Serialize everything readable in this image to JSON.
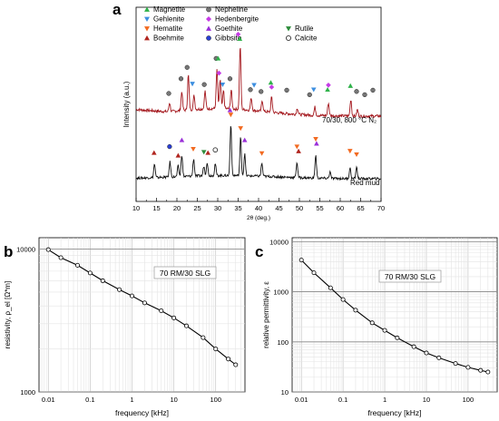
{
  "panels": {
    "a": {
      "label": "a"
    },
    "b": {
      "label": "b"
    },
    "c": {
      "label": "c"
    }
  },
  "chart_data": [
    {
      "panel": "a",
      "type": "line",
      "xlabel": "2θ (deg.)",
      "ylabel": "Intensity (a.u.)",
      "xlim": [
        10,
        70
      ],
      "xticks": [
        10,
        15,
        20,
        25,
        30,
        35,
        40,
        45,
        50,
        55,
        60,
        65,
        70
      ],
      "legend": [
        {
          "name": "Magnetite",
          "marker": "triangle-up",
          "color": "#2fb24a"
        },
        {
          "name": "Gehlenite",
          "marker": "triangle-down",
          "color": "#3d8fe0"
        },
        {
          "name": "Hematite",
          "marker": "triangle-down",
          "color": "#f26a21"
        },
        {
          "name": "Boehmite",
          "marker": "triangle-up",
          "color": "#b0241e"
        },
        {
          "name": "Nepheline",
          "marker": "circle",
          "color": "#777777"
        },
        {
          "name": "Hedenbergite",
          "marker": "diamond",
          "color": "#c63be6"
        },
        {
          "name": "Goethite",
          "marker": "triangle-up",
          "color": "#9a2fd8"
        },
        {
          "name": "Gibbsite",
          "marker": "circle",
          "color": "#2a3fd6"
        },
        {
          "name": "Rutile",
          "marker": "triangle-down",
          "color": "#2c8c3a"
        },
        {
          "name": "Calcite",
          "marker": "circle-open",
          "color": "#333333"
        }
      ],
      "series": [
        {
          "name": "70/30, 800 °C N₂",
          "color": "#a3151b",
          "peaks": [
            {
              "x": 18.2,
              "h": 0.14
            },
            {
              "x": 21.2,
              "h": 0.3
            },
            {
              "x": 22.8,
              "h": 0.55
            },
            {
              "x": 24.2,
              "h": 0.22
            },
            {
              "x": 26.9,
              "h": 0.28
            },
            {
              "x": 29.8,
              "h": 0.62
            },
            {
              "x": 30.6,
              "h": 0.46
            },
            {
              "x": 31.4,
              "h": 0.28
            },
            {
              "x": 33.3,
              "h": 0.3
            },
            {
              "x": 35.5,
              "h": 1.0
            },
            {
              "x": 38.2,
              "h": 0.2
            },
            {
              "x": 40.9,
              "h": 0.17
            },
            {
              "x": 43.2,
              "h": 0.24
            },
            {
              "x": 49.5,
              "h": 0.1
            },
            {
              "x": 53.8,
              "h": 0.13
            },
            {
              "x": 57.1,
              "h": 0.2
            },
            {
              "x": 62.6,
              "h": 0.26
            },
            {
              "x": 64.2,
              "h": 0.1
            }
          ],
          "markers": [
            {
              "x": 18.0,
              "m": "circle"
            },
            {
              "x": 21.0,
              "m": "circle"
            },
            {
              "x": 22.5,
              "m": "circle"
            },
            {
              "x": 23.8,
              "m": "triangle-down-blue"
            },
            {
              "x": 26.7,
              "m": "circle"
            },
            {
              "x": 29.6,
              "m": "circle"
            },
            {
              "x": 30.3,
              "m": "diamond"
            },
            {
              "x": 30.1,
              "m": "triangle-up-green"
            },
            {
              "x": 31.2,
              "m": "triangle-down-blue"
            },
            {
              "x": 33.0,
              "m": "circle"
            },
            {
              "x": 35.4,
              "m": "triangle-up-green"
            },
            {
              "x": 35.0,
              "m": "diamond"
            },
            {
              "x": 38.0,
              "m": "circle"
            },
            {
              "x": 38.9,
              "m": "triangle-down-blue"
            },
            {
              "x": 40.6,
              "m": "circle"
            },
            {
              "x": 43.0,
              "m": "triangle-up-green"
            },
            {
              "x": 43.2,
              "m": "diamond"
            },
            {
              "x": 46.9,
              "m": "circle"
            },
            {
              "x": 52.5,
              "m": "circle"
            },
            {
              "x": 53.5,
              "m": "triangle-down-blue"
            },
            {
              "x": 56.9,
              "m": "triangle-up-green"
            },
            {
              "x": 57.1,
              "m": "diamond"
            },
            {
              "x": 62.5,
              "m": "triangle-up-green"
            },
            {
              "x": 64.0,
              "m": "circle"
            },
            {
              "x": 66.0,
              "m": "circle"
            },
            {
              "x": 68.0,
              "m": "circle"
            }
          ]
        },
        {
          "name": "Red mud",
          "color": "#111111",
          "peaks": [
            {
              "x": 14.5,
              "h": 0.25
            },
            {
              "x": 18.3,
              "h": 0.28
            },
            {
              "x": 20.3,
              "h": 0.2
            },
            {
              "x": 21.2,
              "h": 0.4
            },
            {
              "x": 24.1,
              "h": 0.32
            },
            {
              "x": 26.6,
              "h": 0.18
            },
            {
              "x": 27.4,
              "h": 0.25
            },
            {
              "x": 29.4,
              "h": 0.22
            },
            {
              "x": 33.2,
              "h": 0.95
            },
            {
              "x": 35.6,
              "h": 0.7
            },
            {
              "x": 36.6,
              "h": 0.4
            },
            {
              "x": 40.8,
              "h": 0.24
            },
            {
              "x": 49.4,
              "h": 0.28
            },
            {
              "x": 54.0,
              "h": 0.42
            },
            {
              "x": 57.5,
              "h": 0.12
            },
            {
              "x": 62.4,
              "h": 0.2
            },
            {
              "x": 64.0,
              "h": 0.22
            }
          ],
          "markers": [
            {
              "x": 14.4,
              "m": "triangle-up-red"
            },
            {
              "x": 18.2,
              "m": "circle-blue"
            },
            {
              "x": 20.3,
              "m": "triangle-up-red"
            },
            {
              "x": 21.2,
              "m": "triangle-up-purple"
            },
            {
              "x": 24.0,
              "m": "triangle-down-orange"
            },
            {
              "x": 26.6,
              "m": "triangle-down-green"
            },
            {
              "x": 27.6,
              "m": "triangle-up-red"
            },
            {
              "x": 29.4,
              "m": "circle-open"
            },
            {
              "x": 33.2,
              "m": "triangle-down-orange"
            },
            {
              "x": 33.0,
              "m": "triangle-up-purple"
            },
            {
              "x": 35.6,
              "m": "triangle-down-orange"
            },
            {
              "x": 36.6,
              "m": "triangle-up-purple"
            },
            {
              "x": 40.8,
              "m": "triangle-down-orange"
            },
            {
              "x": 49.4,
              "m": "triangle-down-orange"
            },
            {
              "x": 49.8,
              "m": "triangle-up-red"
            },
            {
              "x": 54.0,
              "m": "triangle-down-orange"
            },
            {
              "x": 54.2,
              "m": "triangle-up-purple"
            },
            {
              "x": 62.4,
              "m": "triangle-down-orange"
            },
            {
              "x": 64.0,
              "m": "triangle-down-orange"
            }
          ]
        }
      ]
    },
    {
      "panel": "b",
      "type": "line",
      "xscale": "log",
      "yscale": "log",
      "xlabel": "frequency [kHz]",
      "ylabel": "resistivity, ρ_el [Ω*m]",
      "xlim": [
        0.006,
        500
      ],
      "ylim": [
        1000,
        12000
      ],
      "xticks": [
        "0.01",
        "0.1",
        "1",
        "10",
        "100"
      ],
      "yticks": [
        "1000",
        "10000"
      ],
      "legend_label": "70 RM/30 SLG",
      "series": [
        {
          "x": [
            0.01,
            0.02,
            0.05,
            0.1,
            0.2,
            0.5,
            1,
            2,
            5,
            10,
            20,
            50,
            100,
            200,
            300
          ],
          "y": [
            9900,
            8700,
            7700,
            6800,
            6000,
            5200,
            4700,
            4200,
            3700,
            3300,
            2900,
            2400,
            2000,
            1700,
            1550
          ]
        }
      ]
    },
    {
      "panel": "c",
      "type": "line",
      "xscale": "log",
      "yscale": "log",
      "xlabel": "frequency [kHz]",
      "ylabel": "relative permittivity, ε",
      "xlim": [
        0.006,
        500
      ],
      "ylim": [
        10,
        12000
      ],
      "xticks": [
        "0.01",
        "0.1",
        "1",
        "10",
        "100"
      ],
      "yticks": [
        "10",
        "100",
        "1000",
        "10000"
      ],
      "legend_label": "70 RM/30 SLG",
      "series": [
        {
          "x": [
            0.01,
            0.02,
            0.05,
            0.1,
            0.2,
            0.5,
            1,
            2,
            5,
            10,
            20,
            50,
            100,
            200,
            300
          ],
          "y": [
            4300,
            2400,
            1200,
            700,
            430,
            240,
            170,
            120,
            80,
            60,
            48,
            37,
            31,
            27,
            25
          ]
        }
      ]
    }
  ]
}
